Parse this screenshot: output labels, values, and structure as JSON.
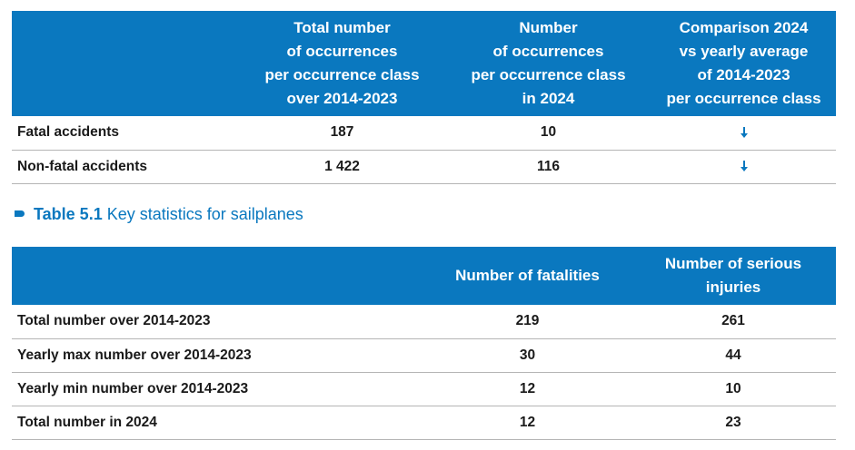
{
  "table1": {
    "headers": [
      "",
      "Total number of occurrences per occurrence class over 2014-2023",
      "Number of occurrences per occurrence class in 2024",
      "Comparison 2024 vs yearly average of 2014-2023 per occurrence class"
    ],
    "header_lines": {
      "col2": [
        "Total number",
        "of occurrences",
        "per occurrence class",
        "over 2014-2023"
      ],
      "col3": [
        "Number",
        "of occurrences",
        "per occurrence class",
        "in 2024"
      ],
      "col4": [
        "Comparison 2024",
        "vs yearly average",
        "of 2014-2023",
        "per occurrence class"
      ]
    },
    "rows": [
      {
        "label": "Fatal accidents",
        "total_2014_2023": "187",
        "count_2024": "10",
        "comparison": "down"
      },
      {
        "label": "Non-fatal accidents",
        "total_2014_2023": "1 422",
        "count_2024": "116",
        "comparison": "down"
      }
    ],
    "comparison_icon": "arrow-down-icon"
  },
  "caption": {
    "number": "Table 5.1",
    "text": "Key statistics for sailplanes"
  },
  "table2": {
    "headers": [
      "",
      "Number of fatalities",
      "Number of serious injuries"
    ],
    "header_lines": {
      "col3": [
        "Number of serious",
        "injuries"
      ]
    },
    "rows": [
      {
        "label": "Total number over 2014-2023",
        "fatalities": "219",
        "serious_injuries": "261"
      },
      {
        "label": "Yearly max number over 2014-2023",
        "fatalities": "30",
        "serious_injuries": "44"
      },
      {
        "label": "Yearly min number over 2014-2023",
        "fatalities": "12",
        "serious_injuries": "10"
      },
      {
        "label": "Total number in 2024",
        "fatalities": "12",
        "serious_injuries": "23"
      }
    ]
  },
  "colors": {
    "header_bg": "#0a78bf",
    "header_text": "#ffffff",
    "accent": "#0a78bf",
    "row_border": "#b5b5b5"
  }
}
